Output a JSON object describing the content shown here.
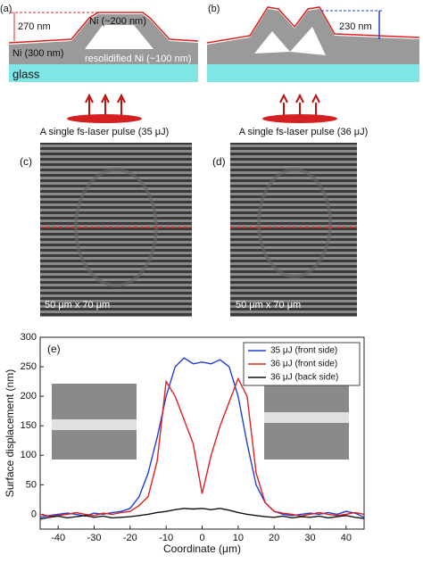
{
  "figure": {
    "panel_a": {
      "label": "(a)",
      "height": "270 nm",
      "top_layer": "Ni (~200 nm)",
      "film": "Ni (300 nm)",
      "resolidified": "resolidified Ni (~100 nm)",
      "substrate": "glass",
      "pulse": "A single fs-laser pulse (35 μJ)"
    },
    "panel_b": {
      "label": "(b)",
      "height": "230 nm",
      "pulse": "A single fs-laser pulse (36 μJ)"
    },
    "panel_c": {
      "label": "(c)",
      "scale": "50 μm x 70 μm"
    },
    "panel_d": {
      "label": "(d)",
      "scale": "50 μm x 70 μm"
    }
  },
  "chart_data": {
    "type": "line",
    "label": "(e)",
    "x_label": "Coordinate (μm)",
    "y_label": "Surface displacement (nm)",
    "x": [
      -45,
      -42.5,
      -40,
      -37.5,
      -35,
      -32.5,
      -30,
      -27.5,
      -25,
      -22.5,
      -20,
      -17.5,
      -15,
      -12.5,
      -10,
      -7.5,
      -5,
      -2.5,
      0,
      2.5,
      5,
      7.5,
      10,
      12.5,
      15,
      17.5,
      20,
      22.5,
      25,
      27.5,
      30,
      32.5,
      35,
      37.5,
      40,
      42.5,
      45
    ],
    "series": [
      {
        "name": "35 μJ (front side)",
        "color": "#1f3fd6",
        "values": [
          -5,
          -2,
          0,
          2,
          0,
          -3,
          2,
          0,
          3,
          5,
          10,
          30,
          70,
          130,
          200,
          250,
          265,
          255,
          258,
          255,
          262,
          250,
          200,
          120,
          50,
          20,
          5,
          0,
          -2,
          0,
          2,
          0,
          3,
          0,
          5,
          2,
          -5
        ]
      },
      {
        "name": "36 μJ (front side)",
        "color": "#e02020",
        "values": [
          0,
          -3,
          -2,
          0,
          3,
          0,
          -2,
          2,
          0,
          3,
          5,
          15,
          30,
          90,
          225,
          200,
          160,
          120,
          35,
          100,
          150,
          190,
          230,
          200,
          70,
          20,
          5,
          2,
          0,
          -3,
          0,
          3,
          0,
          -2,
          0,
          3,
          0
        ]
      },
      {
        "name": "36 μJ (back side)",
        "color": "#111111",
        "values": [
          -8,
          -5,
          -3,
          -6,
          -4,
          -2,
          -5,
          -3,
          -6,
          -5,
          -4,
          -2,
          0,
          3,
          5,
          8,
          10,
          9,
          10,
          8,
          10,
          7,
          3,
          0,
          -2,
          -4,
          -5,
          -3,
          -6,
          -4,
          -5,
          -3,
          -6,
          -4,
          -2,
          -5,
          -7
        ]
      }
    ],
    "xlim": [
      -45,
      45
    ],
    "xticks": [
      -40,
      -30,
      -20,
      -10,
      0,
      10,
      20,
      30,
      40
    ],
    "ylim": [
      -25,
      300
    ],
    "yticks": [
      0,
      50,
      100,
      150,
      200,
      250,
      300
    ],
    "legend": "upper right"
  }
}
